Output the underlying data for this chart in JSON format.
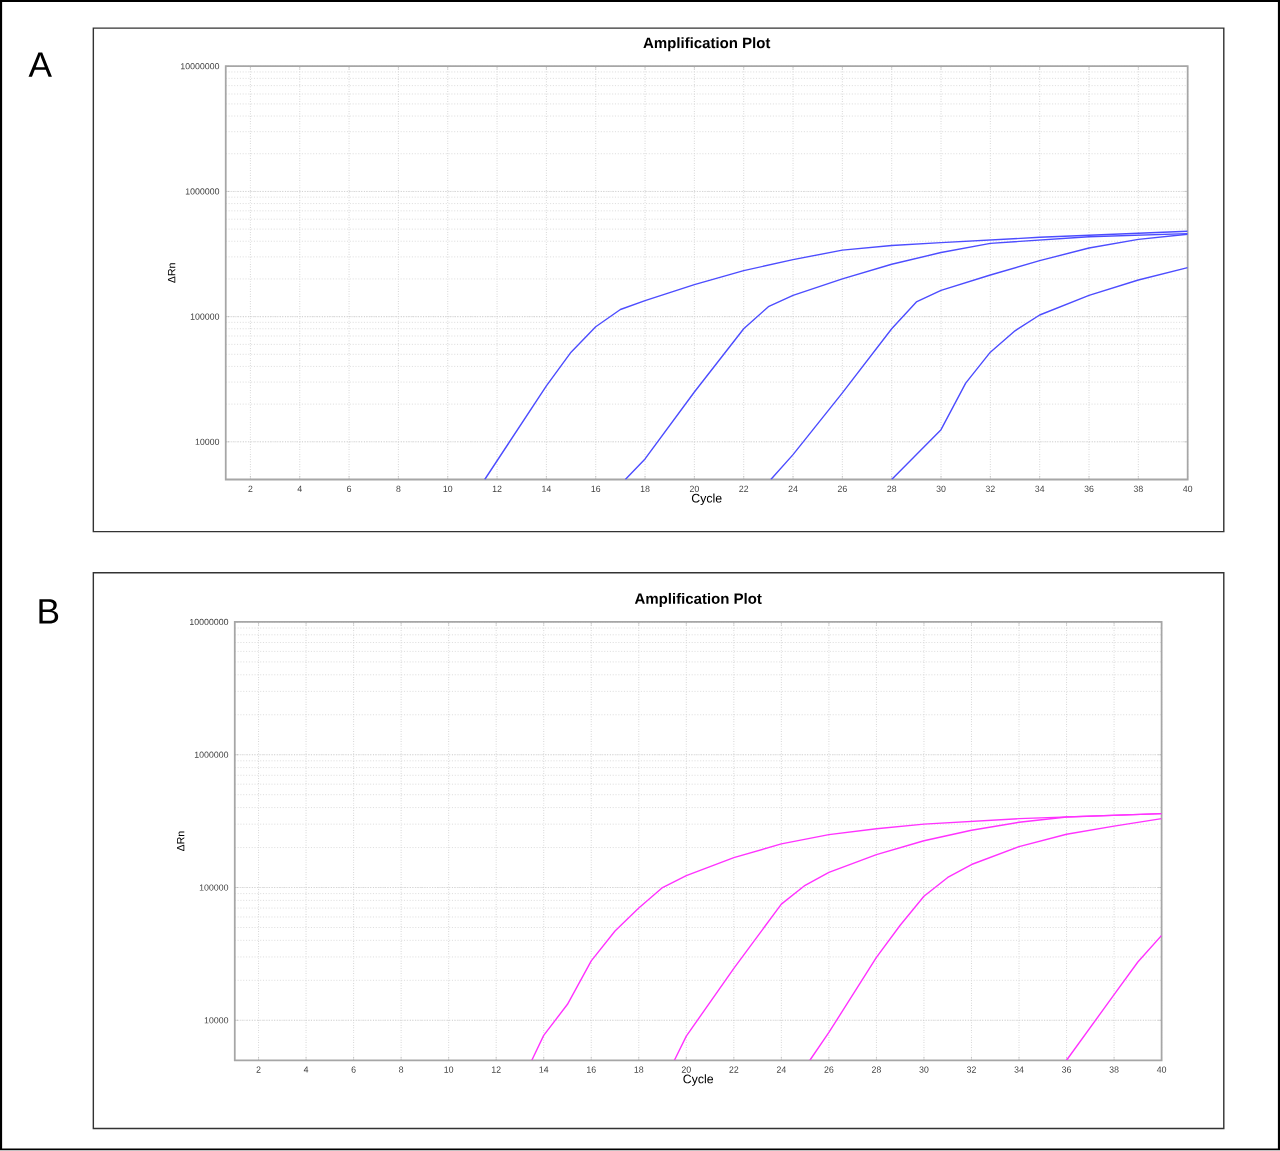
{
  "chart_data": [
    {
      "type": "line",
      "title": "Amplification Plot",
      "xlabel": "Cycle",
      "ylabel": "ΔRn",
      "annotations": [
        "A"
      ],
      "log": true,
      "grid": true,
      "xlim": [
        1,
        40
      ],
      "ylim": [
        5000,
        10000000
      ],
      "xticks": [
        2,
        4,
        6,
        8,
        10,
        12,
        14,
        16,
        18,
        20,
        22,
        24,
        26,
        28,
        30,
        32,
        34,
        36,
        38,
        40
      ],
      "yticks": [
        10000,
        100000,
        1000000,
        10000000
      ],
      "series": [
        {
          "color": "#4d4dff",
          "x": [
            11.5,
            14,
            15,
            16,
            17,
            18,
            20,
            22,
            24,
            26,
            28,
            30,
            34,
            40
          ],
          "values": [
            5000,
            28000,
            52000,
            83000,
            114000,
            134000,
            180000,
            233000,
            285000,
            340000,
            370000,
            390000,
            430000,
            480000
          ]
        },
        {
          "color": "#4d4dff",
          "x": [
            17.2,
            18,
            20,
            22,
            23,
            24,
            26,
            28,
            30,
            32,
            36,
            40
          ],
          "values": [
            5000,
            7300,
            25000,
            80000,
            120000,
            148000,
            200000,
            262000,
            325000,
            385000,
            435000,
            460000
          ]
        },
        {
          "color": "#4d4dff",
          "x": [
            23.1,
            24,
            26,
            28,
            29,
            30,
            32,
            34,
            36,
            38,
            40
          ],
          "values": [
            5000,
            7900,
            24600,
            80000,
            131000,
            162000,
            215000,
            280000,
            353000,
            414000,
            455000
          ]
        },
        {
          "color": "#4d4dff",
          "x": [
            28,
            30,
            31,
            32,
            33,
            34,
            36,
            38,
            40
          ],
          "values": [
            5000,
            12500,
            29400,
            52000,
            77000,
            103000,
            148000,
            196000,
            246000
          ]
        }
      ]
    },
    {
      "type": "line",
      "title": "Amplification Plot",
      "xlabel": "Cycle",
      "ylabel": "ΔRn",
      "annotations": [
        "B"
      ],
      "log": true,
      "grid": true,
      "xlim": [
        1,
        40
      ],
      "ylim": [
        5000,
        10000000
      ],
      "xticks": [
        2,
        4,
        6,
        8,
        10,
        12,
        14,
        16,
        18,
        20,
        22,
        24,
        26,
        28,
        30,
        32,
        34,
        36,
        38,
        40
      ],
      "yticks": [
        10000,
        100000,
        1000000,
        10000000
      ],
      "series": [
        {
          "color": "#ff33ff",
          "x": [
            13.5,
            14,
            15,
            16,
            17,
            18,
            19,
            20,
            22,
            24,
            26,
            28,
            30,
            34,
            40
          ],
          "values": [
            5000,
            7700,
            13200,
            28000,
            47000,
            70000,
            100000,
            123000,
            168000,
            213000,
            250000,
            277000,
            300000,
            330000,
            360000
          ]
        },
        {
          "color": "#ff33ff",
          "x": [
            19.5,
            20,
            22,
            24,
            25,
            26,
            28,
            30,
            32,
            34,
            36,
            40
          ],
          "values": [
            5000,
            7600,
            24600,
            75000,
            104000,
            130000,
            177000,
            225000,
            270000,
            310000,
            340000,
            360000
          ]
        },
        {
          "color": "#ff33ff",
          "x": [
            25.2,
            26,
            28,
            29,
            30,
            31,
            32,
            34,
            36,
            38,
            40
          ],
          "values": [
            5000,
            8100,
            29800,
            52000,
            86000,
            119000,
            149000,
            203000,
            252000,
            290000,
            330000
          ]
        },
        {
          "color": "#ff33ff",
          "x": [
            36,
            38,
            39,
            40
          ],
          "values": [
            5000,
            15600,
            27500,
            43600
          ]
        }
      ]
    }
  ]
}
